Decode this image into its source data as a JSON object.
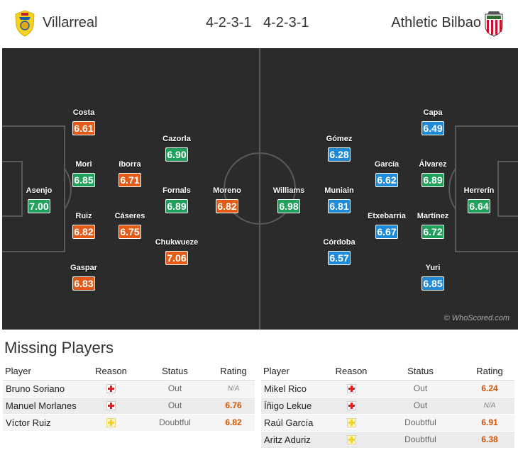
{
  "header": {
    "home_team": "Villarreal",
    "away_team": "Athletic Bilbao",
    "home_formation": "4-2-3-1",
    "away_formation": "4-2-3-1",
    "home_crest_icon": "villarreal-crest-icon",
    "away_crest_icon": "athletic-bilbao-crest-icon"
  },
  "pitch": {
    "copyright": "© WhoScored.com",
    "home_players": [
      {
        "name": "Asenjo",
        "rating": "7.00",
        "color": "green"
      },
      {
        "name": "Costa",
        "rating": "6.61",
        "color": "orange"
      },
      {
        "name": "Mori",
        "rating": "6.85",
        "color": "green"
      },
      {
        "name": "Ruiz",
        "rating": "6.82",
        "color": "orange"
      },
      {
        "name": "Gaspar",
        "rating": "6.83",
        "color": "orange"
      },
      {
        "name": "Iborra",
        "rating": "6.71",
        "color": "orange"
      },
      {
        "name": "Cáseres",
        "rating": "6.75",
        "color": "orange"
      },
      {
        "name": "Cazorla",
        "rating": "6.90",
        "color": "green"
      },
      {
        "name": "Fornals",
        "rating": "6.89",
        "color": "green"
      },
      {
        "name": "Chukwueze",
        "rating": "7.06",
        "color": "orange"
      },
      {
        "name": "Moreno",
        "rating": "6.82",
        "color": "orange"
      }
    ],
    "away_players": [
      {
        "name": "Williams",
        "rating": "6.98",
        "color": "green"
      },
      {
        "name": "Gómez",
        "rating": "6.28",
        "color": "blue"
      },
      {
        "name": "Muniain",
        "rating": "6.81",
        "color": "blue"
      },
      {
        "name": "Córdoba",
        "rating": "6.57",
        "color": "blue"
      },
      {
        "name": "García",
        "rating": "6.62",
        "color": "blue"
      },
      {
        "name": "Etxebarria",
        "rating": "6.67",
        "color": "blue"
      },
      {
        "name": "Capa",
        "rating": "6.49",
        "color": "blue"
      },
      {
        "name": "Álvarez",
        "rating": "6.89",
        "color": "green"
      },
      {
        "name": "Martínez",
        "rating": "6.72",
        "color": "green"
      },
      {
        "name": "Yuri",
        "rating": "6.85",
        "color": "blue"
      },
      {
        "name": "Herrerín",
        "rating": "6.64",
        "color": "green"
      }
    ]
  },
  "missing": {
    "title": "Missing Players",
    "headers": {
      "player": "Player",
      "reason": "Reason",
      "status": "Status",
      "rating": "Rating"
    },
    "home": [
      {
        "player": "Bruno Soriano",
        "reason": "injury",
        "status": "Out",
        "rating": "N/A"
      },
      {
        "player": "Manuel Morlanes",
        "reason": "injury",
        "status": "Out",
        "rating": "6.76"
      },
      {
        "player": "Víctor Ruiz",
        "reason": "doubtful",
        "status": "Doubtful",
        "rating": "6.82"
      }
    ],
    "away": [
      {
        "player": "Mikel Rico",
        "reason": "injury",
        "status": "Out",
        "rating": "6.24"
      },
      {
        "player": "Íñigo Lekue",
        "reason": "injury",
        "status": "Out",
        "rating": "N/A"
      },
      {
        "player": "Raúl García",
        "reason": "doubtful",
        "status": "Doubtful",
        "rating": "6.91"
      },
      {
        "player": "Aritz Aduriz",
        "reason": "doubtful",
        "status": "Doubtful",
        "rating": "6.38"
      }
    ]
  },
  "colors": {
    "pitch": "#2b2b2b",
    "rating_orange": "#e35b16",
    "rating_green": "#20a05a",
    "rating_blue": "#1f8ad8"
  }
}
